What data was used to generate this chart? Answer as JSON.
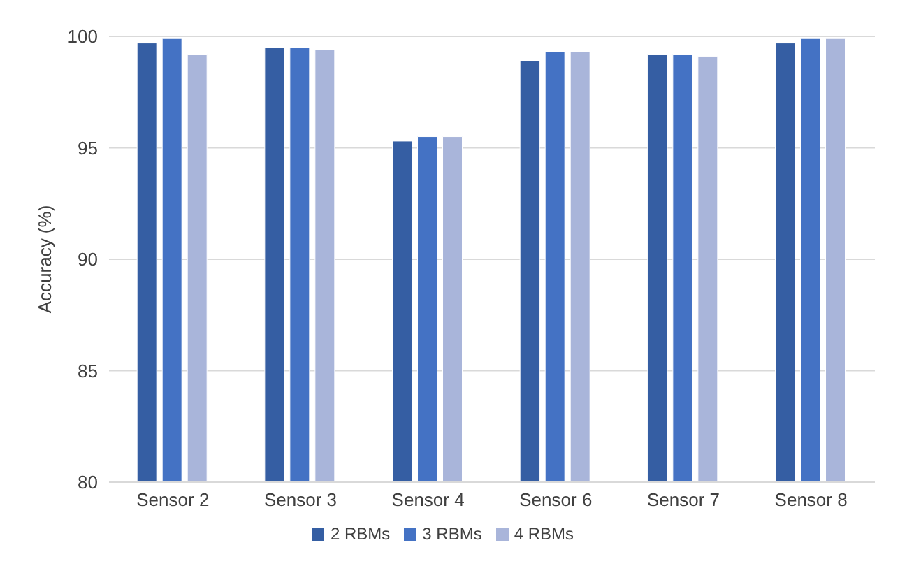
{
  "chart_data": {
    "type": "bar",
    "ylabel": "Accuracy (%)",
    "categories": [
      "Sensor 2",
      "Sensor 3",
      "Sensor 4",
      "Sensor 6",
      "Sensor 7",
      "Sensor 8"
    ],
    "series": [
      {
        "name": "2 RBMs",
        "color": "#355ea3",
        "values": [
          99.7,
          99.5,
          95.3,
          98.9,
          99.2,
          99.7
        ]
      },
      {
        "name": "3 RBMs",
        "color": "#4472c4",
        "values": [
          99.9,
          99.5,
          95.5,
          99.3,
          99.2,
          99.9
        ]
      },
      {
        "name": "4 RBMs",
        "color": "#a9b5da",
        "values": [
          99.2,
          99.4,
          95.5,
          99.3,
          99.1,
          99.9
        ]
      }
    ],
    "ylim": [
      80,
      100
    ],
    "yticks": [
      80,
      85,
      90,
      95,
      100
    ],
    "grid": "y",
    "legend": "bottom"
  }
}
